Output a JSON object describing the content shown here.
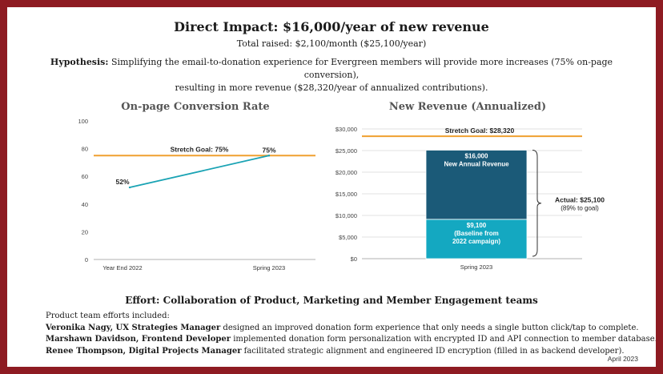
{
  "header": {
    "title": "Direct Impact: $16,000/year of new revenue",
    "subtitle": "Total raised: $2,100/month ($25,100/year)",
    "hypothesis_label": "Hypothesis:",
    "hypothesis_line1": "Simplifying the email-to-donation experience for Evergreen members will provide more increases (75% on-page conversion),",
    "hypothesis_line2": "resulting in more revenue ($28,320/year of annualized contributions)."
  },
  "chart_data": [
    {
      "type": "line",
      "title": "On-page Conversion Rate",
      "categories": [
        "Year End 2022",
        "Spring 2023"
      ],
      "series": [
        {
          "values": [
            52,
            75
          ]
        }
      ],
      "data_labels": [
        "52%",
        "75%"
      ],
      "ylim": [
        0,
        100
      ],
      "yticks": [
        "0",
        "20",
        "40",
        "60",
        "80",
        "100"
      ],
      "reference_line": {
        "label": "Stretch Goal: 75%",
        "value": 75,
        "color": "#f0a030"
      },
      "line_color": "#1aa3b4",
      "grid": false
    },
    {
      "type": "bar",
      "stacked": true,
      "title": "New Revenue (Annualized)",
      "categories": [
        "Spring 2023"
      ],
      "series": [
        {
          "values": [
            9100
          ],
          "label_lines": [
            "$9,100",
            "(Baseline from",
            "2022 campaign)"
          ],
          "color": "#14a8c1"
        },
        {
          "values": [
            16000
          ],
          "label_lines": [
            "$16,000",
            "New Annual Revenue"
          ],
          "color": "#1b5a78"
        }
      ],
      "ylim": [
        0,
        30000
      ],
      "yticks": [
        "$0",
        "$5,000",
        "$10,000",
        "$15,000",
        "$20,000",
        "$25,000",
        "$30,000"
      ],
      "reference_line": {
        "label": "Stretch Goal: $28,320",
        "value": 28320,
        "color": "#f0a030"
      },
      "annotation": {
        "label": "Actual: $25,100",
        "sublabel": "(89% to goal)"
      },
      "grid": true
    }
  ],
  "effort": {
    "title": "Effort: Collaboration of Product, Marketing and Member Engagement teams",
    "intro": "Product team efforts included:",
    "items": [
      {
        "name": "Veronika Nagy, UX Strategies Manager",
        "text": " designed an improved donation form experience that only needs a single button click/tap to complete."
      },
      {
        "name": "Marshawn Davidson, Frontend Developer",
        "text": " implemented donation form personalization with encrypted ID and API connection to member database."
      },
      {
        "name": "Renee Thompson, Digital Projects Manager",
        "text": " facilitated strategic alignment and engineered ID encryption (filled in as backend developer)."
      }
    ]
  },
  "footer": {
    "date": "April 2023"
  }
}
